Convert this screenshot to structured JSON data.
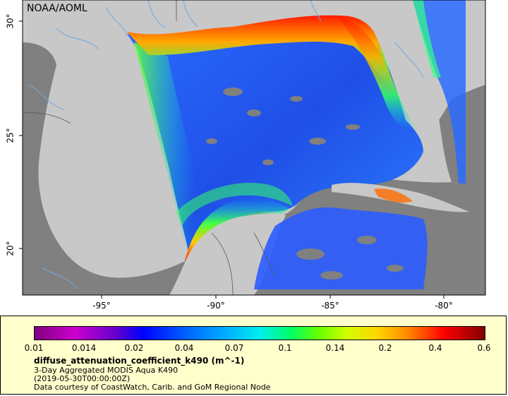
{
  "map": {
    "credit": "NOAA/AOML",
    "lon_ticks": [
      {
        "label": "-95°"
      },
      {
        "label": "-90°"
      },
      {
        "label": "-85°"
      },
      {
        "label": "-80°"
      }
    ],
    "lat_ticks": [
      {
        "label": "30°"
      },
      {
        "label": "25°"
      },
      {
        "label": "20°"
      }
    ],
    "colors": {
      "land": "#c8c8c8",
      "no_data": "#808080",
      "river": "#6fa8dc",
      "border": "#555555"
    }
  },
  "legend": {
    "scale_labels": [
      "0.01",
      "0.014",
      "0.02",
      "0.04",
      "0.07",
      "0.1",
      "0.14",
      "0.2",
      "0.4",
      "0.6"
    ],
    "title": "diffuse_attenuation_coefficient_k490 (m^-1)",
    "line1": "3-Day Aggregated MODIS Aqua K490",
    "line2": "(2019-05-30T00:00:00Z)",
    "line3": "Data courtesy of CoastWatch, Carib. and GoM Regional Node"
  }
}
